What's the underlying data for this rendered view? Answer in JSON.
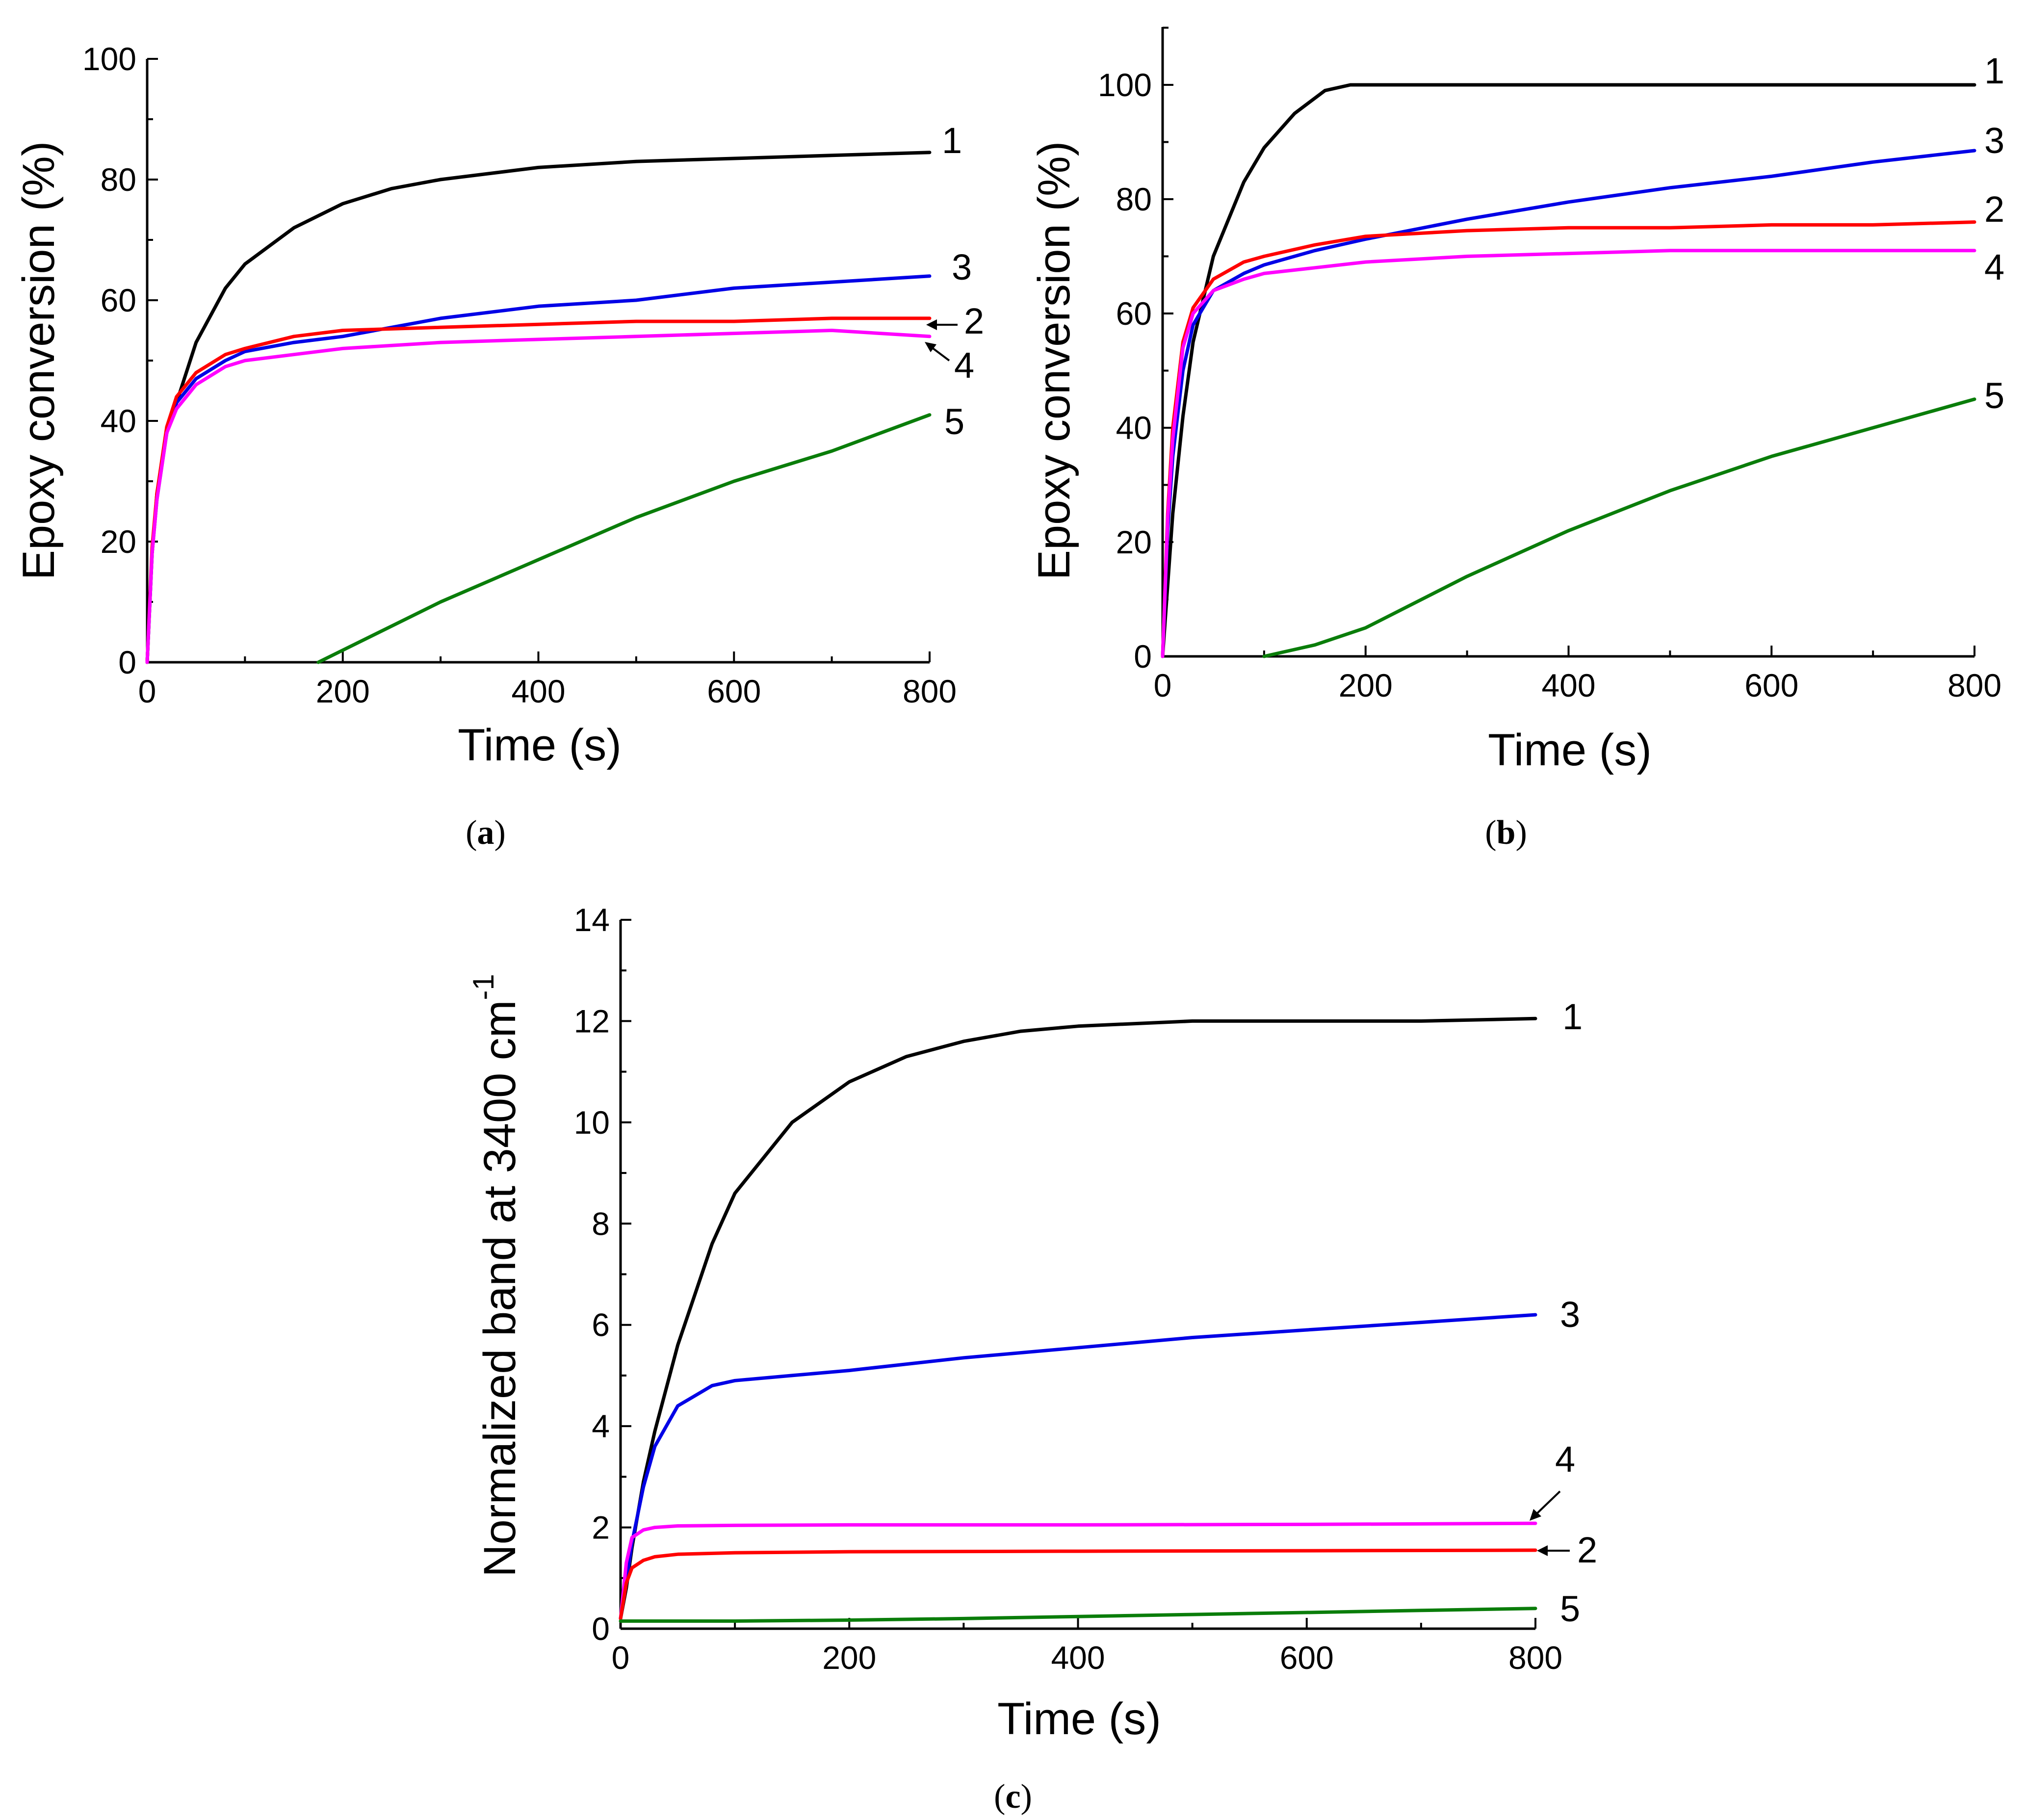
{
  "colors": {
    "1": "#000000",
    "2": "#ff0000",
    "3": "#0000e6",
    "4": "#ff00ff",
    "5": "#0a7d0a"
  },
  "chart_data": [
    {
      "type": "line",
      "id": "a",
      "caption": "a",
      "xlabel": "Time (s)",
      "ylabel": "Epoxy conversion (%)",
      "xlim": [
        0,
        800
      ],
      "ylim": [
        0,
        100
      ],
      "xticks": [
        0,
        200,
        400,
        600,
        800
      ],
      "yticks": [
        0,
        20,
        40,
        60,
        80,
        100
      ],
      "series": [
        {
          "name": "1",
          "x": [
            0,
            5,
            10,
            20,
            30,
            50,
            80,
            100,
            150,
            200,
            250,
            300,
            400,
            500,
            600,
            700,
            800
          ],
          "y": [
            0,
            18,
            28,
            38,
            43,
            53,
            62,
            66,
            72,
            76,
            78.5,
            80,
            82,
            83,
            83.5,
            84,
            84.5
          ]
        },
        {
          "name": "3",
          "x": [
            0,
            5,
            10,
            20,
            30,
            50,
            80,
            100,
            150,
            200,
            300,
            400,
            500,
            600,
            700,
            800
          ],
          "y": [
            0,
            18,
            27,
            38,
            43,
            47,
            50,
            51.5,
            53,
            54,
            57,
            59,
            60,
            62,
            63,
            64
          ]
        },
        {
          "name": "2",
          "x": [
            0,
            5,
            10,
            20,
            30,
            50,
            80,
            100,
            150,
            200,
            300,
            400,
            500,
            600,
            700,
            800
          ],
          "y": [
            0,
            19,
            28,
            39,
            44,
            48,
            51,
            52,
            54,
            55,
            55.5,
            56,
            56.5,
            56.5,
            57,
            57
          ]
        },
        {
          "name": "4",
          "x": [
            0,
            5,
            10,
            20,
            30,
            50,
            80,
            100,
            150,
            200,
            300,
            400,
            500,
            600,
            700,
            800
          ],
          "y": [
            0,
            18,
            27,
            38,
            42,
            46,
            49,
            50,
            51,
            52,
            53,
            53.5,
            54,
            54.5,
            55,
            54
          ]
        },
        {
          "name": "5",
          "x": [
            175,
            200,
            300,
            400,
            500,
            600,
            700,
            800
          ],
          "y": [
            0,
            2,
            10,
            17,
            24,
            30,
            35,
            41
          ]
        }
      ]
    },
    {
      "type": "line",
      "id": "b",
      "caption": "b",
      "xlabel": "Time (s)",
      "ylabel": "Epoxy conversion (%)",
      "xlim": [
        0,
        800
      ],
      "ylim": [
        0,
        110
      ],
      "xticks": [
        0,
        200,
        400,
        600,
        800
      ],
      "yticks": [
        0,
        20,
        40,
        60,
        80,
        100
      ],
      "series": [
        {
          "name": "1",
          "x": [
            0,
            10,
            20,
            30,
            50,
            80,
            100,
            130,
            160,
            185,
            200,
            400,
            600,
            800
          ],
          "y": [
            0,
            25,
            42,
            55,
            70,
            83,
            89,
            95,
            99,
            100,
            100,
            100,
            100,
            100
          ]
        },
        {
          "name": "3",
          "x": [
            0,
            5,
            10,
            20,
            30,
            50,
            80,
            100,
            150,
            200,
            300,
            400,
            500,
            600,
            700,
            800
          ],
          "y": [
            0,
            22,
            35,
            50,
            58,
            64,
            67,
            68.5,
            71,
            73,
            76.5,
            79.5,
            82,
            84,
            86.5,
            88.5
          ]
        },
        {
          "name": "2",
          "x": [
            0,
            5,
            10,
            20,
            30,
            50,
            80,
            100,
            150,
            200,
            300,
            400,
            500,
            600,
            700,
            800
          ],
          "y": [
            0,
            25,
            40,
            55,
            61,
            66,
            69,
            70,
            72,
            73.5,
            74.5,
            75,
            75,
            75.5,
            75.5,
            76
          ]
        },
        {
          "name": "4",
          "x": [
            0,
            5,
            10,
            20,
            30,
            50,
            80,
            100,
            150,
            200,
            300,
            400,
            500,
            600,
            700,
            800
          ],
          "y": [
            0,
            24,
            38,
            54,
            60,
            64,
            66,
            67,
            68,
            69,
            70,
            70.5,
            71,
            71,
            71,
            71
          ]
        },
        {
          "name": "5",
          "x": [
            100,
            150,
            200,
            300,
            400,
            500,
            600,
            700,
            800
          ],
          "y": [
            0,
            2,
            5,
            14,
            22,
            29,
            35,
            40,
            45
          ]
        }
      ]
    },
    {
      "type": "line",
      "id": "c",
      "caption": "c",
      "xlabel": "Time (s)",
      "ylabel": "Normalized band at 3400 cm",
      "ylabel_sup": "-1",
      "xlim": [
        0,
        800
      ],
      "ylim": [
        0,
        14
      ],
      "xticks": [
        0,
        200,
        400,
        600,
        800
      ],
      "yticks": [
        0,
        2,
        4,
        6,
        8,
        10,
        12,
        14
      ],
      "series": [
        {
          "name": "1",
          "x": [
            0,
            5,
            10,
            20,
            30,
            50,
            80,
            100,
            150,
            200,
            250,
            300,
            350,
            400,
            500,
            600,
            700,
            800
          ],
          "y": [
            0.2,
            0.8,
            1.6,
            2.9,
            3.9,
            5.6,
            7.6,
            8.6,
            10.0,
            10.8,
            11.3,
            11.6,
            11.8,
            11.9,
            12.0,
            12.0,
            12.0,
            12.05
          ]
        },
        {
          "name": "3",
          "x": [
            0,
            5,
            10,
            20,
            30,
            50,
            80,
            100,
            150,
            200,
            300,
            400,
            500,
            600,
            700,
            800
          ],
          "y": [
            0.2,
            0.9,
            1.7,
            2.8,
            3.6,
            4.4,
            4.8,
            4.9,
            5.0,
            5.1,
            5.35,
            5.55,
            5.75,
            5.9,
            6.05,
            6.2
          ]
        },
        {
          "name": "4",
          "x": [
            0,
            5,
            10,
            20,
            30,
            50,
            100,
            200,
            400,
            600,
            800
          ],
          "y": [
            0.2,
            1.3,
            1.8,
            1.95,
            2.0,
            2.03,
            2.04,
            2.05,
            2.05,
            2.06,
            2.08
          ]
        },
        {
          "name": "2",
          "x": [
            0,
            5,
            10,
            20,
            30,
            50,
            100,
            200,
            400,
            600,
            800
          ],
          "y": [
            0.2,
            0.9,
            1.2,
            1.35,
            1.42,
            1.47,
            1.5,
            1.52,
            1.53,
            1.54,
            1.55
          ]
        },
        {
          "name": "5",
          "x": [
            0,
            100,
            200,
            300,
            400,
            500,
            600,
            700,
            800
          ],
          "y": [
            0.15,
            0.15,
            0.17,
            0.2,
            0.24,
            0.28,
            0.32,
            0.36,
            0.4
          ]
        }
      ]
    }
  ]
}
